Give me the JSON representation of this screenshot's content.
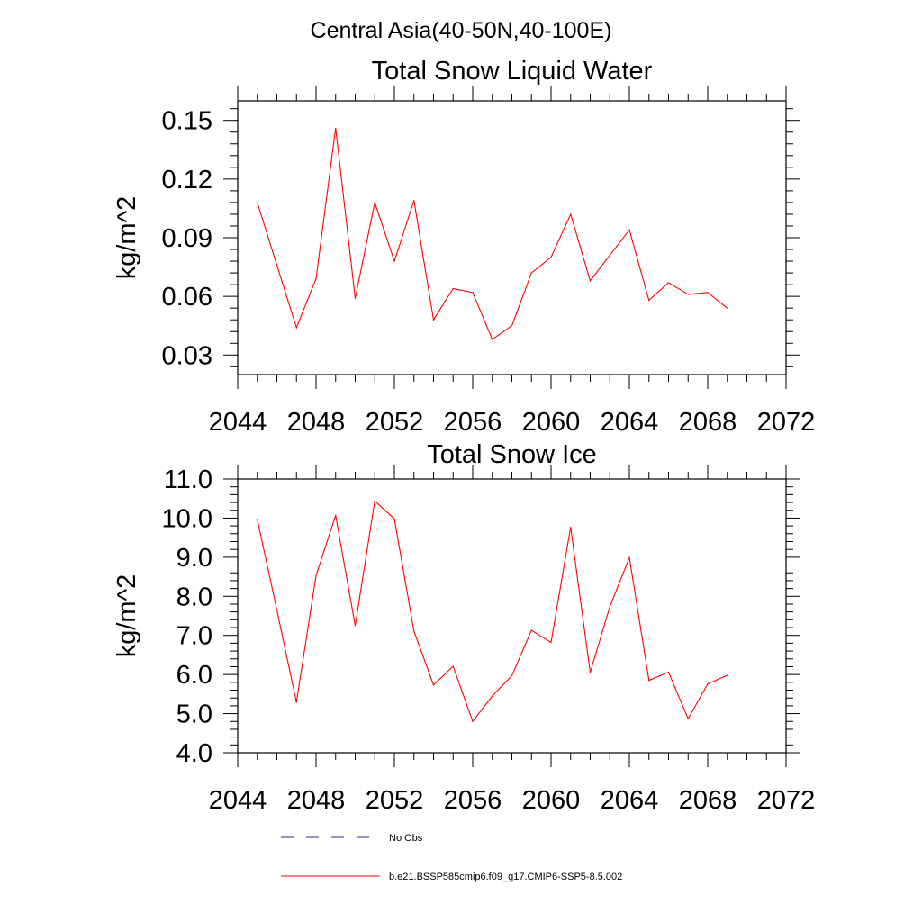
{
  "suptitle": "Central Asia(40-50N,40-100E)",
  "colors": {
    "series": "#ff0000",
    "obs": "#2a2a7a",
    "axis": "#000000"
  },
  "legend": {
    "obs_label": "No Obs",
    "model_label": "b.e21.BSSP585cmip6.f09_g17.CMIP6-SSP5-8.5.002"
  },
  "chart_data": [
    {
      "type": "line",
      "title": "Total Snow Liquid Water",
      "xlabel": "",
      "ylabel": "kg/m^2",
      "xlim": [
        2044,
        2072
      ],
      "ylim": [
        0.02,
        0.16
      ],
      "x_ticks": [
        2044,
        2048,
        2052,
        2056,
        2060,
        2064,
        2068,
        2072
      ],
      "y_ticks": [
        0.03,
        0.06,
        0.09,
        0.12,
        0.15
      ],
      "y_tick_labels": [
        "0.03",
        "0.06",
        "0.09",
        "0.12",
        "0.15"
      ],
      "grid": false,
      "x": [
        2045,
        2046,
        2047,
        2048,
        2049,
        2050,
        2051,
        2052,
        2053,
        2054,
        2055,
        2056,
        2057,
        2058,
        2059,
        2060,
        2061,
        2062,
        2063,
        2064,
        2065,
        2066,
        2067,
        2068,
        2069
      ],
      "series": [
        {
          "name": "b.e21.BSSP585cmip6.f09_g17.CMIP6-SSP5-8.5.002",
          "values": [
            0.108,
            0.076,
            0.044,
            0.069,
            0.146,
            0.059,
            0.108,
            0.078,
            0.109,
            0.048,
            0.064,
            0.062,
            0.038,
            0.045,
            0.072,
            0.08,
            0.102,
            0.068,
            0.081,
            0.094,
            0.058,
            0.067,
            0.061,
            0.062,
            0.054
          ]
        }
      ]
    },
    {
      "type": "line",
      "title": "Total Snow Ice",
      "xlabel": "",
      "ylabel": "kg/m^2",
      "xlim": [
        2044,
        2072
      ],
      "ylim": [
        4.0,
        11.0
      ],
      "x_ticks": [
        2044,
        2048,
        2052,
        2056,
        2060,
        2064,
        2068,
        2072
      ],
      "y_ticks": [
        4,
        5,
        6,
        7,
        8,
        9,
        10,
        11
      ],
      "y_tick_labels": [
        "4.0",
        "5.0",
        "6.0",
        "7.0",
        "8.0",
        "9.0",
        "10.0",
        "11.0"
      ],
      "grid": false,
      "x": [
        2045,
        2046,
        2047,
        2048,
        2049,
        2050,
        2051,
        2052,
        2053,
        2054,
        2055,
        2056,
        2057,
        2058,
        2059,
        2060,
        2061,
        2062,
        2063,
        2064,
        2065,
        2066,
        2067,
        2068,
        2069
      ],
      "series": [
        {
          "name": "b.e21.BSSP585cmip6.f09_g17.CMIP6-SSP5-8.5.002",
          "values": [
            9.97,
            7.65,
            5.29,
            8.53,
            10.07,
            7.25,
            10.44,
            9.98,
            7.11,
            5.73,
            6.21,
            4.8,
            5.45,
            5.97,
            7.13,
            6.82,
            9.77,
            6.05,
            7.73,
            8.99,
            5.85,
            6.06,
            4.87,
            5.76,
            5.98
          ]
        }
      ]
    }
  ]
}
